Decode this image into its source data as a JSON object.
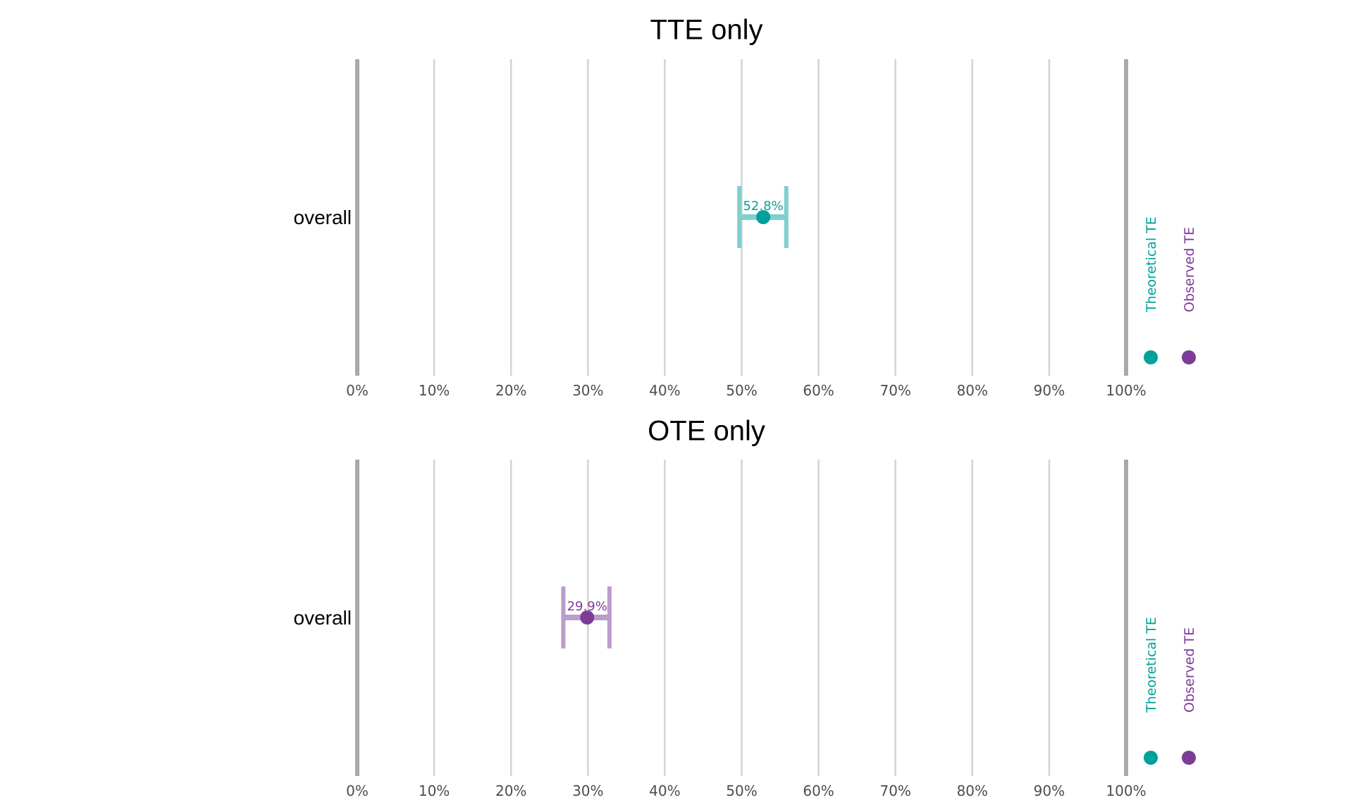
{
  "colors": {
    "theoretical": "#00a19d",
    "theoretical_light": "#7fcfcd",
    "observed": "#7d3c98",
    "observed_light": "#bb9dcb",
    "grid": "#d3d3d3",
    "bound": "#a9a9a9",
    "tick_text": "#4d4d4d"
  },
  "legend": {
    "theoretical_label": "Theoretical TE",
    "observed_label": "Observed TE",
    "marker": "circle"
  },
  "chart_data": [
    {
      "type": "scatter",
      "title": "TTE only",
      "xlim": [
        0,
        100
      ],
      "ticks": [
        0,
        10,
        20,
        30,
        40,
        50,
        60,
        70,
        80,
        90,
        100
      ],
      "tick_labels": [
        "0%",
        "10%",
        "20%",
        "30%",
        "40%",
        "50%",
        "60%",
        "70%",
        "80%",
        "90%",
        "100%"
      ],
      "grid": true,
      "legend_position": "right",
      "categories": [
        "overall"
      ],
      "series": [
        {
          "name": "Theoretical TE",
          "color_key": "theoretical",
          "points": [
            {
              "category": "overall",
              "value": 52.8,
              "ci_low": 49.7,
              "ci_high": 55.8,
              "label": "52.8%"
            }
          ]
        }
      ]
    },
    {
      "type": "scatter",
      "title": "OTE only",
      "xlim": [
        0,
        100
      ],
      "ticks": [
        0,
        10,
        20,
        30,
        40,
        50,
        60,
        70,
        80,
        90,
        100
      ],
      "tick_labels": [
        "0%",
        "10%",
        "20%",
        "30%",
        "40%",
        "50%",
        "60%",
        "70%",
        "80%",
        "90%",
        "100%"
      ],
      "grid": true,
      "legend_position": "right",
      "categories": [
        "overall"
      ],
      "series": [
        {
          "name": "Observed TE",
          "color_key": "observed",
          "points": [
            {
              "category": "overall",
              "value": 29.9,
              "ci_low": 26.8,
              "ci_high": 32.8,
              "label": "29.9%"
            }
          ]
        }
      ]
    }
  ]
}
